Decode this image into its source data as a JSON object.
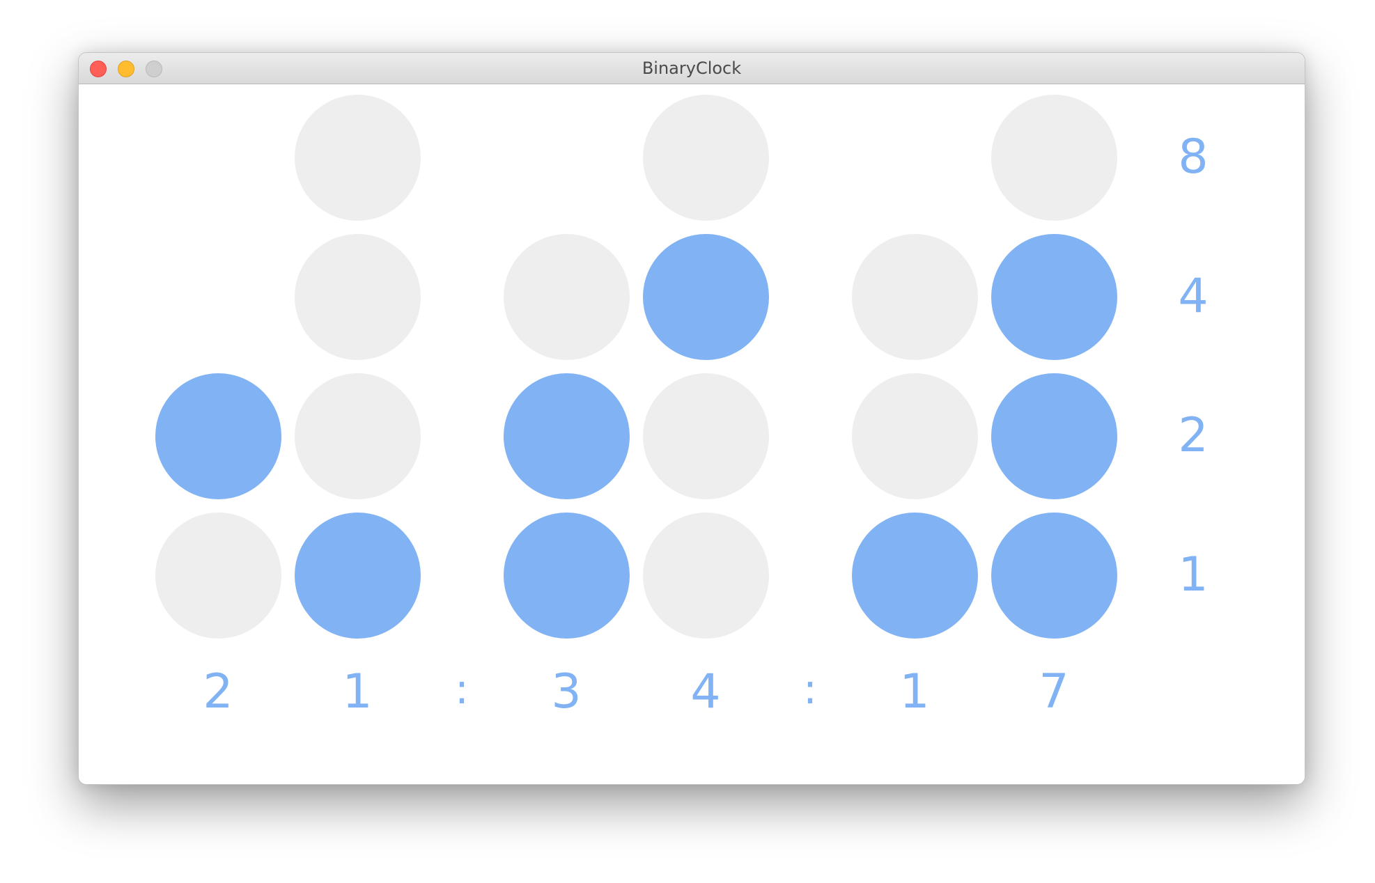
{
  "window": {
    "title": "BinaryClock"
  },
  "colors": {
    "on": "#80b2f4",
    "off": "#eeeeee",
    "text": "#80b2f4"
  },
  "weights": [
    "8",
    "4",
    "2",
    "1"
  ],
  "digits": [
    "2",
    "1",
    ":",
    "3",
    "4",
    ":",
    "1",
    "7"
  ],
  "columns": [
    {
      "digit": "2",
      "bits": [
        1,
        0
      ]
    },
    {
      "digit": "1",
      "bits": [
        0,
        0,
        0,
        1
      ]
    },
    {
      "digit": "3",
      "bits": [
        0,
        1,
        1
      ]
    },
    {
      "digit": "4",
      "bits": [
        0,
        1,
        0,
        0
      ]
    },
    {
      "digit": "1",
      "bits": [
        0,
        0,
        1
      ]
    },
    {
      "digit": "7",
      "bits": [
        0,
        1,
        1,
        1
      ]
    }
  ]
}
